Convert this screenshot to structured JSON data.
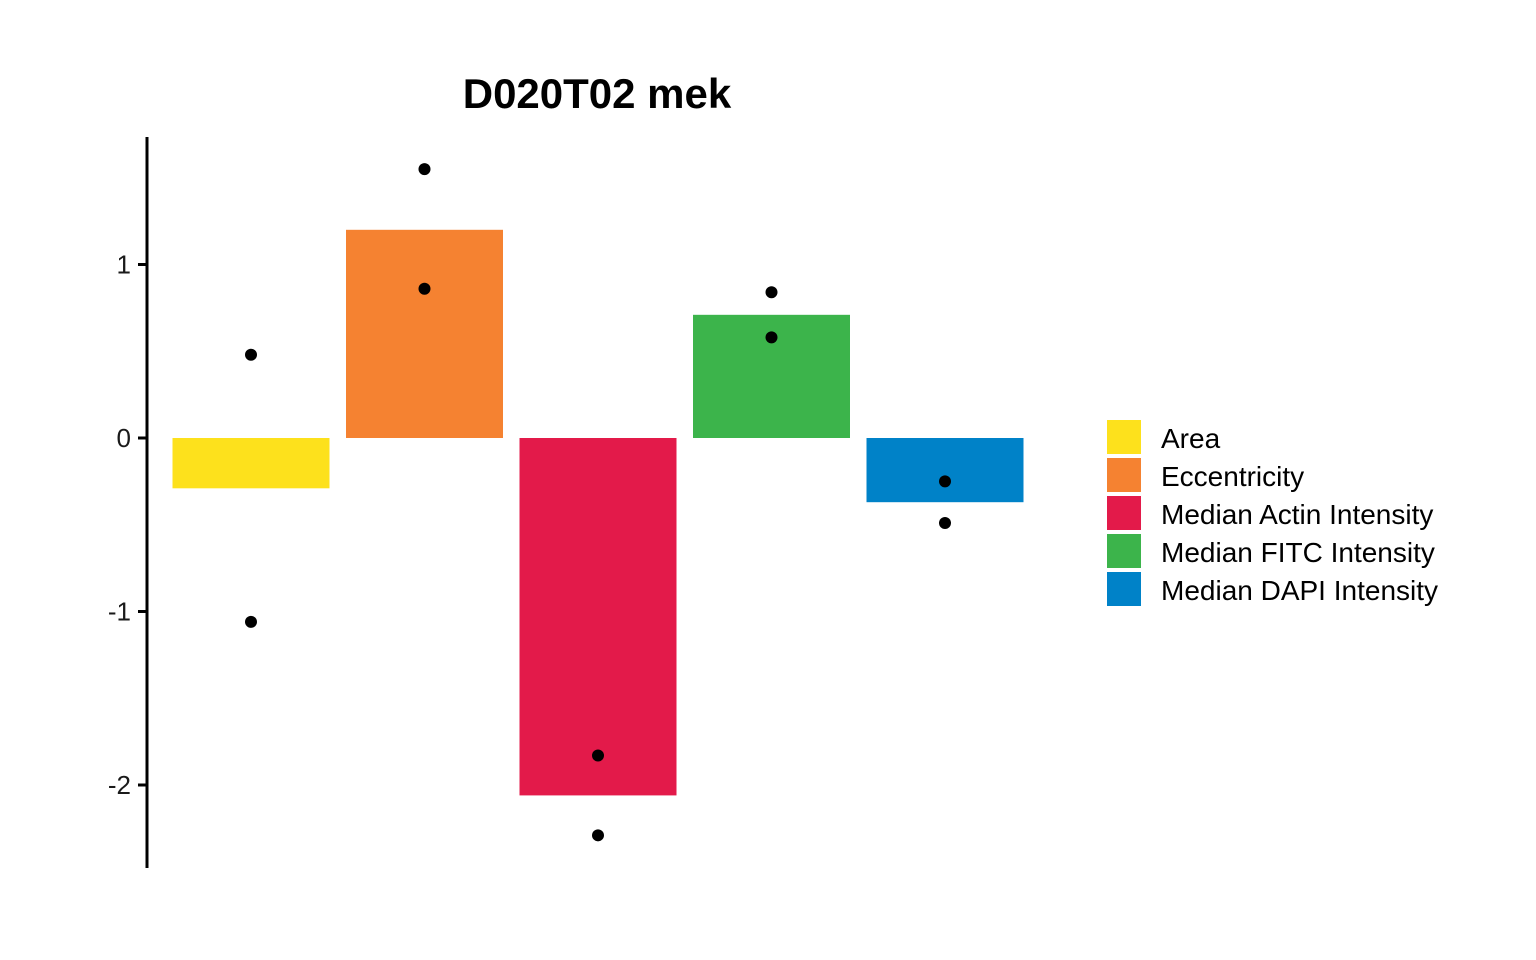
{
  "chart_data": {
    "type": "bar",
    "title": "D020T02 mek",
    "xlabel": "",
    "ylabel": "",
    "ylim": [
      -2.5,
      1.7
    ],
    "yticks": [
      1,
      0,
      -1,
      -2
    ],
    "ytick_labels": [
      "1",
      "0",
      "-1",
      "-2"
    ],
    "grid": false,
    "legend_position": "right",
    "categories": [
      "Area",
      "Eccentricity",
      "Median Actin Intensity",
      "Median FITC Intensity",
      "Median DAPI Intensity"
    ],
    "colors": [
      "#FDE11C",
      "#F58231",
      "#E31A4A",
      "#3CB44B",
      "#0082C8"
    ],
    "values": [
      -0.29,
      1.2,
      -2.06,
      0.71,
      -0.37
    ],
    "points": [
      [
        0.48,
        -1.06
      ],
      [
        1.55,
        0.86
      ],
      [
        -1.83,
        -2.29
      ],
      [
        0.84,
        0.58
      ],
      [
        -0.25,
        -0.49
      ]
    ]
  }
}
